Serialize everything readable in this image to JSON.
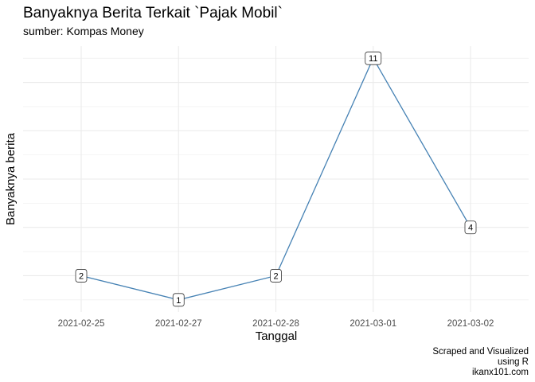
{
  "chart_data": {
    "type": "line",
    "title": "Banyaknya Berita Terkait `Pajak Mobil`",
    "subtitle": "sumber: Kompas Money",
    "xlabel": "Tanggal",
    "ylabel": "Banyaknya berita",
    "categories": [
      "2021-02-25",
      "2021-02-27",
      "2021-02-28",
      "2021-03-01",
      "2021-03-02"
    ],
    "values": [
      2,
      1,
      2,
      11,
      4
    ],
    "data_labels": [
      "2",
      "1",
      "2",
      "11",
      "4"
    ],
    "ylim": [
      0.5,
      11.5
    ],
    "y_tick_labels_shown": false,
    "grid": true,
    "colors": {
      "line": "#4682B4",
      "grid": "#EBEBEB",
      "label_border": "#333333"
    },
    "caption": [
      "Scraped and Visualized",
      "using R",
      "ikanx101.com"
    ]
  }
}
